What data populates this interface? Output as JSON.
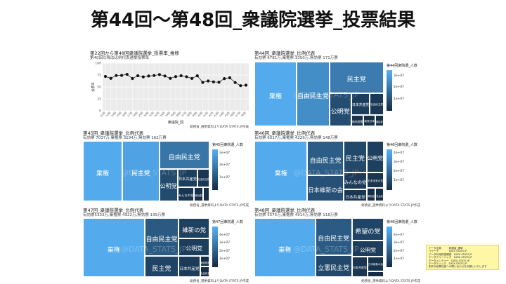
{
  "page_title": "第44回〜第48回_衆議院選挙_投票結果",
  "watermark": "@DATA_STATS_JP",
  "chart_data": [
    {
      "type": "line",
      "id": "turnout",
      "title": "第22回から第48回衆議院選挙_投票率_推移",
      "subtitle": "第40回以降は比例代表選挙投票率",
      "xlabel": "衆議院_回",
      "ylabel": "投票率",
      "ylim": [
        0,
        100
      ],
      "y_ticks": [
        "100",
        "75",
        "50",
        "25",
        "0"
      ],
      "x": [
        "22回",
        "23回",
        "24回",
        "25回",
        "26回",
        "27回",
        "28回",
        "29回",
        "30回",
        "31回",
        "32回",
        "33回",
        "34回",
        "35回",
        "36回",
        "37回",
        "38回",
        "39回",
        "40回",
        "41回",
        "42回",
        "43回",
        "44回",
        "45回",
        "46回",
        "47回",
        "48回"
      ],
      "values": [
        72.1,
        68.0,
        74.0,
        74.2,
        76.4,
        67.7,
        73.5,
        71.1,
        73.0,
        74.0,
        76.0,
        73.0,
        68.0,
        71.8,
        73.5,
        71.4,
        67.9,
        73.3,
        59.6,
        62.5,
        60.6,
        59.9,
        67.5,
        69.3,
        59.3,
        52.7,
        53.7
      ],
      "note": "総務省_選挙資料よりDATA STATS JP作成"
    },
    {
      "type": "treemap",
      "id": "e44",
      "title": "第44回_衆議院選挙_比例代表",
      "subtitle": "有効票 6781万,棄権票 3350万,無効票 171万票",
      "legend_title": "第44回衆院選_人数",
      "legend_ticks": [
        "3e+07",
        "2e+07",
        "1e+07"
      ],
      "tiles": [
        {
          "label": "自由民主党",
          "value": 25887798
        },
        {
          "label": "棄権",
          "value": 33500000
        },
        {
          "label": "民主党",
          "value": 21036425
        },
        {
          "label": "社会民主党",
          "value": 3719522
        },
        {
          "label": "日本共産党",
          "value": 4919187
        },
        {
          "label": "公明党",
          "value": 8987620
        },
        {
          "label": "国民新党",
          "value": 1183073
        },
        {
          "label": "新党日本",
          "value": 1643506
        },
        {
          "label": "無効投票",
          "value": 1710000
        }
      ],
      "note": ""
    },
    {
      "type": "treemap",
      "id": "e45",
      "title": "第45回_衆議院選挙_比例代表",
      "subtitle": "有効票 7037万,棄権票 3194万,無効票 162万票",
      "legend_title": "第45回衆院選_人数",
      "legend_ticks": [
        "3e+07",
        "2e+07",
        "1e+07"
      ],
      "tiles": [
        {
          "label": "民主党",
          "value": 29844799
        },
        {
          "label": "棄権",
          "value": 31940000
        },
        {
          "label": "みんなの党",
          "value": 3005199
        },
        {
          "label": "社会民主党",
          "value": 3006160
        },
        {
          "label": "",
          "value": 1200000
        },
        {
          "label": "無効投票",
          "value": 1620000
        },
        {
          "label": "公明党",
          "value": 8054007
        },
        {
          "label": "日本共産党",
          "value": 4943886
        },
        {
          "label": "自由民主党",
          "value": 18810217
        }
      ],
      "note": "総務省_選挙資料よりDATA STATS JP作成"
    },
    {
      "type": "treemap",
      "id": "e46",
      "title": "第46回_衆議院選挙_比例代表",
      "subtitle": "有効票 6017万,棄権票 4229万,無効票 148万票",
      "legend_title": "第46回衆院選_人数",
      "legend_ticks": [
        "4e+07",
        "3e+07",
        "2e+07",
        "1e+07"
      ],
      "tiles": [
        {
          "label": "自由民主党",
          "value": 16624457
        },
        {
          "label": "棄権",
          "value": 42290000
        },
        {
          "label": "日本共産党",
          "value": 3689159
        },
        {
          "label": "みんなの党",
          "value": 5245586
        },
        {
          "label": "社会民主党",
          "value": 1420790
        },
        {
          "label": "無効投票",
          "value": 1480000
        },
        {
          "label": "日本未来の党",
          "value": 3423915
        },
        {
          "label": "民主党",
          "value": 9628653
        },
        {
          "label": "公明党",
          "value": 7116474
        },
        {
          "label": "日本維新の会",
          "value": 12262228
        }
      ],
      "note": "総務省_選挙資料よりDATA STATS JP作成"
    },
    {
      "type": "treemap",
      "id": "e47",
      "title": "第47回_衆議院選挙_比例代表",
      "subtitle": "有効票5333万,棄権票 4922万,無効票 139万票",
      "legend_title": "第47回衆院選_人数",
      "legend_ticks": [
        "4e+07",
        "3e+07",
        "2e+07",
        "1e+07"
      ],
      "tiles": [
        {
          "label": "棄権",
          "value": 49220000
        },
        {
          "label": "公明党",
          "value": 7314236
        },
        {
          "label": "社会民主党",
          "value": 1314441
        },
        {
          "label": "無効投票",
          "value": 1390000
        },
        {
          "label": "日本共産党",
          "value": 6062962
        },
        {
          "label": "民主党",
          "value": 9775991
        },
        {
          "label": "維新の党",
          "value": 8382699
        },
        {
          "label": "自由民主党",
          "value": 17658916
        }
      ],
      "note": "総務省_選挙資料よりDATA STATS JP作成"
    },
    {
      "type": "treemap",
      "id": "e48",
      "title": "第48回_衆議院選挙_比例代表",
      "subtitle": "有効票 5575万,棄権票 4914万,無効票 118万票",
      "legend_title": "第48回衆院選_人数",
      "legend_ticks": [
        "4e+07",
        "3e+07",
        "2e+07",
        "1e+07"
      ],
      "tiles": [
        {
          "label": "棄権",
          "value": 49140000
        },
        {
          "label": "公明党",
          "value": 6977712
        },
        {
          "label": "日本維新の会",
          "value": 3387097
        },
        {
          "label": "日本共産党",
          "value": 4404081
        },
        {
          "label": "",
          "value": 1180000
        },
        {
          "label": "立憲民主党",
          "value": 11084890
        },
        {
          "label": "希望の党",
          "value": 9677524
        },
        {
          "label": "自由民主党",
          "value": 18555717
        }
      ],
      "note": "総務省_選挙資料よりDATA STATS JP作成"
    }
  ],
  "info_box": [
    "データ出典　　　総務省_選挙",
    "リサーチ　　　　DATA STATS JP",
    "データ利用許諾確認　DATA STATS JP",
    "データクリーニング　DATA STATS JP",
    "データメンテナー　DATA STATS JP",
    "データティンク　DATA STATS JP",
    "制作＆総責任者への問い合わせをお願いいたします"
  ]
}
